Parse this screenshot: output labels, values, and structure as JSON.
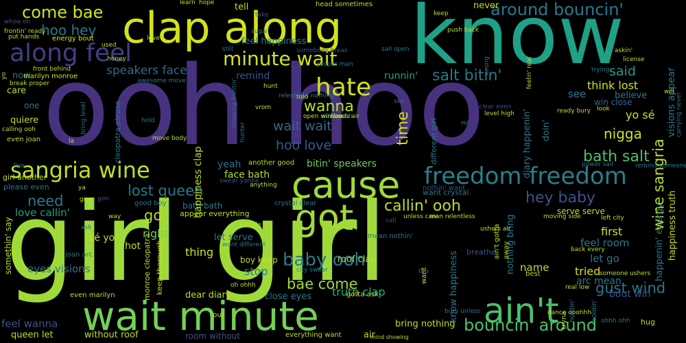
{
  "words": [
    {
      "text": "girl girl",
      "color": "#a0da39"
    },
    {
      "text": "ooh hoo",
      "color": "#46327e"
    },
    {
      "text": "know",
      "color": "#1fa187"
    },
    {
      "text": "clap along",
      "color": "#d2e21b"
    },
    {
      "text": "wait minute",
      "color": "#74d055"
    },
    {
      "text": "cause",
      "color": "#a0da39"
    },
    {
      "text": "got",
      "color": "#a0da39"
    },
    {
      "text": "ain't",
      "color": "#4ac16d"
    },
    {
      "text": "along feel",
      "color": "#433e85"
    },
    {
      "text": "sangria wine",
      "color": "#bddf26"
    },
    {
      "text": "freedom freedom",
      "color": "#277f8e"
    },
    {
      "text": "hate",
      "color": "#d2e21b"
    },
    {
      "text": "minute wait",
      "color": "#d2e21b"
    },
    {
      "text": "come bae",
      "color": "#d2e21b"
    },
    {
      "text": "around bouncin'",
      "color": "#2a788e"
    },
    {
      "text": "bouncin' around",
      "color": "#4ac16d"
    },
    {
      "text": "hoo hey",
      "color": "#2a788e"
    },
    {
      "text": "wanna",
      "color": "#bddf26"
    },
    {
      "text": "salt bitin'",
      "color": "#2a788e"
    },
    {
      "text": "speakers face",
      "color": "#31688e"
    },
    {
      "text": "wait wait",
      "color": "#31688e"
    },
    {
      "text": "hoo love",
      "color": "#365c8d"
    },
    {
      "text": "hey baby",
      "color": "#3b528b"
    },
    {
      "text": "baby ooh",
      "color": "#2a788e"
    },
    {
      "text": "callin' ooh",
      "color": "#bddf26"
    },
    {
      "text": "bae come",
      "color": "#a0da39"
    },
    {
      "text": "lost queen",
      "color": "#2a788e"
    },
    {
      "text": "need",
      "color": "#2a788e"
    },
    {
      "text": "bath salt",
      "color": "#4ac16d"
    },
    {
      "text": "gust wind",
      "color": "#2a788e"
    },
    {
      "text": "nigga",
      "color": "#d2e21b"
    },
    {
      "text": "said",
      "color": "#1f9e89"
    },
    {
      "text": "think lost",
      "color": "#d2e21b"
    },
    {
      "text": "yo sé",
      "color": "#d2e21b"
    },
    {
      "text": "feel happiness",
      "color": "#26828e"
    },
    {
      "text": "time",
      "color": "#d2e21b"
    },
    {
      "text": "go",
      "color": "#bddf26"
    },
    {
      "text": "right",
      "color": "#75d054"
    },
    {
      "text": "love callin'",
      "color": "#1fa187"
    },
    {
      "text": "first",
      "color": "#d2e21b"
    },
    {
      "text": "let go",
      "color": "#2a788e"
    },
    {
      "text": "feel room",
      "color": "#2a788e"
    },
    {
      "text": "thing",
      "color": "#d2e21b"
    },
    {
      "text": "stop",
      "color": "#2a788e"
    },
    {
      "text": "eyes visions",
      "color": "#2a788e"
    },
    {
      "text": "truth clap",
      "color": "#27ad81"
    },
    {
      "text": "face bath",
      "color": "#b5de2b"
    },
    {
      "text": "bitin' speakers",
      "color": "#6ccd5a"
    },
    {
      "text": "yeah",
      "color": "#2e6f8e"
    },
    {
      "text": "tried",
      "color": "#d2e21b"
    },
    {
      "text": "bout win",
      "color": "#3b528b"
    },
    {
      "text": "arc mean",
      "color": "#2a788e"
    },
    {
      "text": "name",
      "color": "#bddf26"
    },
    {
      "text": "see",
      "color": "#2a788e"
    },
    {
      "text": "believe",
      "color": "#2a788e"
    },
    {
      "text": "win close",
      "color": "#31688e"
    },
    {
      "text": "quiere",
      "color": "#bddf26"
    },
    {
      "text": "care",
      "color": "#bddf26"
    },
    {
      "text": "one",
      "color": "#2a788e"
    },
    {
      "text": "now",
      "color": "#2a788e"
    },
    {
      "text": "sé yo",
      "color": "#bddf26"
    },
    {
      "text": "hot",
      "color": "#bddf26"
    },
    {
      "text": "go",
      "color": "#bddf26"
    },
    {
      "text": "let serve",
      "color": "#2a788e"
    },
    {
      "text": "bath bath",
      "color": "#2a788e"
    },
    {
      "text": "serve serve",
      "color": "#bddf26"
    },
    {
      "text": "feel wanna",
      "color": "#3b528b"
    },
    {
      "text": "queen let",
      "color": "#bddf26"
    },
    {
      "text": "without roof",
      "color": "#bddf26"
    },
    {
      "text": "room without",
      "color": "#3b528b"
    },
    {
      "text": "bring nothing",
      "color": "#bddf26"
    },
    {
      "text": "air",
      "color": "#bddf26"
    },
    {
      "text": "close eyes",
      "color": "#2a788e"
    },
    {
      "text": "dear diary",
      "color": "#bddf26"
    },
    {
      "text": "roof clap",
      "color": "#bddf26"
    },
    {
      "text": "boy keep",
      "color": "#bddf26"
    },
    {
      "text": "energy bout",
      "color": "#d2e21b"
    },
    {
      "text": "marilyn monroe",
      "color": "#d2e21b"
    },
    {
      "text": "runnin'",
      "color": "#1fa187"
    },
    {
      "text": "remind",
      "color": "#3b528b"
    },
    {
      "text": "even marilyn",
      "color": "#bddf26"
    },
    {
      "text": "please even",
      "color": "#2a788e"
    },
    {
      "text": "girl another",
      "color": "#bddf26"
    },
    {
      "text": "even joan",
      "color": "#bddf26"
    },
    {
      "text": "joan arc",
      "color": "#2a788e"
    },
    {
      "text": "want crystal",
      "color": "#2a788e"
    },
    {
      "text": "crystal clear",
      "color": "#2a788e"
    },
    {
      "text": "another good",
      "color": "#bddf26"
    },
    {
      "text": "good boy",
      "color": "#2a788e"
    },
    {
      "text": "appear everything",
      "color": "#bddf26"
    },
    {
      "text": "everything want",
      "color": "#bddf26"
    },
    {
      "text": "tell",
      "color": "#bddf26"
    },
    {
      "text": "never",
      "color": "#bddf26"
    },
    {
      "text": "doin'",
      "color": "#2a788e"
    },
    {
      "text": "happiness clap",
      "color": "#bddf26"
    },
    {
      "text": "wine sangria",
      "color": "#bddf26"
    },
    {
      "text": "visions appear",
      "color": "#2a788e"
    },
    {
      "text": "happiness truth",
      "color": "#bddf26"
    },
    {
      "text": "happenin' energy",
      "color": "#2a788e"
    },
    {
      "text": "diary happenin'",
      "color": "#2a788e"
    },
    {
      "text": "nothing bring",
      "color": "#2a788e"
    },
    {
      "text": "know happiness",
      "color": "#2a788e"
    },
    {
      "text": "somethin' say",
      "color": "#bddf26"
    },
    {
      "text": "cleopatra please",
      "color": "#2a788e"
    },
    {
      "text": "monroe cleopatra",
      "color": "#bddf26"
    },
    {
      "text": "keep thorough",
      "color": "#bddf26"
    },
    {
      "text": "different girl",
      "color": "#2a788e"
    },
    {
      "text": "nothin' want",
      "color": "#3b528b"
    },
    {
      "text": "gotta ask",
      "color": "#bddf26"
    },
    {
      "text": "bury unless",
      "color": "#2a788e"
    },
    {
      "text": "mind showing",
      "color": "#bddf26"
    },
    {
      "text": "side",
      "color": "#bddf26"
    },
    {
      "text": "want",
      "color": "#2a788e"
    },
    {
      "text": "mean nothin'",
      "color": "#bddf26"
    },
    {
      "text": "head sometimes",
      "color": "#3b528b"
    },
    {
      "text": "somebody break",
      "color": "#2a788e"
    },
    {
      "text": "proper man",
      "color": "#3b528b"
    },
    {
      "text": "whoa oh",
      "color": "#bddf26"
    },
    {
      "text": "frontin' ready",
      "color": "#bddf26"
    },
    {
      "text": "front behind",
      "color": "#bddf26"
    },
    {
      "text": "break proper",
      "color": "#2a788e"
    },
    {
      "text": "awesome move",
      "color": "#bddf26"
    },
    {
      "text": "love",
      "color": "#bddf26"
    },
    {
      "text": "learn",
      "color": "#bddf26"
    },
    {
      "text": "hope",
      "color": "#3b528b"
    },
    {
      "text": "take",
      "color": "#bddf26"
    },
    {
      "text": "keep",
      "color": "#bddf26"
    },
    {
      "text": "push back",
      "color": "#bddf26"
    },
    {
      "text": "askin'",
      "color": "#bddf26"
    },
    {
      "text": "license",
      "color": "#2a788e"
    },
    {
      "text": "sugar",
      "color": "#bddf26"
    },
    {
      "text": "used",
      "color": "#2a788e"
    },
    {
      "text": "still",
      "color": "#bddf26"
    },
    {
      "text": "honey",
      "color": "#2a788e"
    },
    {
      "text": "sail open",
      "color": "#bddf26"
    },
    {
      "text": "hunt",
      "color": "#2a788e"
    },
    {
      "text": "relentless nothing",
      "color": "#bddf26"
    },
    {
      "text": "told",
      "color": "#2a788e"
    },
    {
      "text": "wind push",
      "color": "#bddf26"
    },
    {
      "text": "open window",
      "color": "#bddf26"
    },
    {
      "text": "hands air",
      "color": "#bddf26"
    },
    {
      "text": "level high",
      "color": "#2a788e"
    },
    {
      "text": "bring level",
      "color": "#2a788e"
    },
    {
      "text": "hold",
      "color": "#bddf26"
    },
    {
      "text": "la",
      "color": "#bddf26"
    },
    {
      "text": "move body",
      "color": "#2a788e"
    },
    {
      "text": "live",
      "color": "#bddf26"
    },
    {
      "text": "calling ooh",
      "color": "#2a788e"
    },
    {
      "text": "power sail",
      "color": "#2a788e"
    },
    {
      "text": "remind someone",
      "color": "#bddf26"
    },
    {
      "text": "look",
      "color": "#bddf26"
    },
    {
      "text": "ready bury",
      "color": "#bddf26"
    },
    {
      "text": "way",
      "color": "#2a788e"
    },
    {
      "text": "ask",
      "color": "#2a788e"
    },
    {
      "text": "sex",
      "color": "#2a788e"
    },
    {
      "text": "showing frontin'",
      "color": "#2a788e"
    },
    {
      "text": "hunter",
      "color": "#bddf26"
    },
    {
      "text": "anything",
      "color": "#bddf26"
    },
    {
      "text": "people",
      "color": "#3b528b"
    },
    {
      "text": "call",
      "color": "#bddf26"
    },
    {
      "text": "unless care",
      "color": "#bddf26"
    },
    {
      "text": "man relentless",
      "color": "#2a788e"
    },
    {
      "text": "want different",
      "color": "#3b528b"
    },
    {
      "text": "swear yardie",
      "color": "#bddf26"
    },
    {
      "text": "oh ohhh",
      "color": "#2a788e"
    },
    {
      "text": "city swear",
      "color": "#2a788e"
    },
    {
      "text": "top",
      "color": "#3b528b"
    },
    {
      "text": "breathe",
      "color": "#bddf26"
    },
    {
      "text": "best",
      "color": "#bddf26"
    },
    {
      "text": "back every",
      "color": "#bddf26"
    },
    {
      "text": "real low",
      "color": "#bddf26"
    },
    {
      "text": "someone ushers",
      "color": "#bddf26"
    },
    {
      "text": "moving side",
      "color": "#bddf26"
    },
    {
      "text": "left city",
      "color": "#bddf26"
    },
    {
      "text": "sometimes girl",
      "color": "#bddf26"
    },
    {
      "text": "eh",
      "color": "#bddf26"
    },
    {
      "text": "ain't gotta",
      "color": "#bddf26"
    },
    {
      "text": "away",
      "color": "#bddf26"
    },
    {
      "text": "ushers air",
      "color": "#2a788e"
    },
    {
      "text": "tryna",
      "color": "#bddf26"
    },
    {
      "text": "dance ooohhh",
      "color": "#2a788e"
    },
    {
      "text": "ohhh ohh",
      "color": "#2a788e"
    },
    {
      "text": "hug",
      "color": "#3b528b"
    },
    {
      "text": "holdin'",
      "color": "#2a788e"
    },
    {
      "text": "trying",
      "color": "#2a788e"
    },
    {
      "text": "clear even",
      "color": "#bddf26"
    },
    {
      "text": "mi",
      "color": "#bddf26"
    },
    {
      "text": "wrong",
      "color": "#bddf26"
    },
    {
      "text": "feelin' real",
      "color": "#2a788e"
    },
    {
      "text": "put",
      "color": "#bddf26"
    },
    {
      "text": "will",
      "color": "#3b528b"
    },
    {
      "text": "carrying never",
      "color": "#bddf26"
    },
    {
      "text": "give",
      "color": "#bddf26"
    },
    {
      "text": "gon",
      "color": "#bddf26"
    },
    {
      "text": "ya",
      "color": "#bddf26"
    },
    {
      "text": "yo",
      "color": "#bddf26"
    },
    {
      "text": "put hands",
      "color": "#bddf26"
    },
    {
      "text": "vrom",
      "color": "#2a788e"
    }
  ]
}
